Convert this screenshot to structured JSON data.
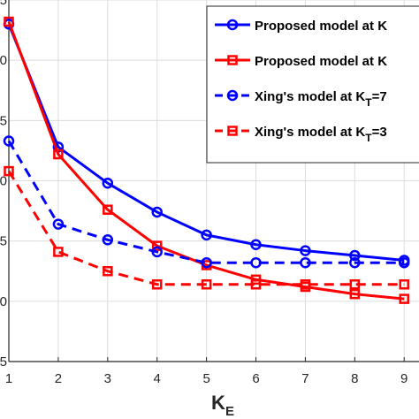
{
  "chart_data": {
    "type": "line",
    "xlabel_main": "K",
    "xlabel_sub": "E",
    "ylabel": "",
    "x": [
      1,
      2,
      3,
      4,
      5,
      6,
      7,
      8,
      9
    ],
    "xticks": [
      "1",
      "2",
      "3",
      "4",
      "5",
      "6",
      "7",
      "8",
      "9"
    ],
    "yticks": [
      "5",
      "0",
      "5",
      "0",
      "5",
      "0",
      "5"
    ],
    "xlim": [
      1,
      9.3
    ],
    "ylim": [
      1.5,
      4.5
    ],
    "grid": true,
    "legend_position": "top-right",
    "series": [
      {
        "name": "Proposed model at K",
        "color": "#0000ff",
        "dash": "solid",
        "marker": "circle",
        "values": [
          4.3,
          3.28,
          2.98,
          2.74,
          2.55,
          2.47,
          2.42,
          2.38,
          2.34
        ]
      },
      {
        "name": "Proposed model at K",
        "color": "#ff0000",
        "dash": "solid",
        "marker": "square",
        "values": [
          4.32,
          3.22,
          2.76,
          2.46,
          2.3,
          2.18,
          2.12,
          2.06,
          2.02
        ]
      },
      {
        "name": "Xing's model at K",
        "name_sub": "T",
        "name_tail": "=7",
        "color": "#0000ff",
        "dash": "dashed",
        "marker": "circle",
        "values": [
          3.33,
          2.64,
          2.51,
          2.41,
          2.32,
          2.32,
          2.32,
          2.32,
          2.32
        ]
      },
      {
        "name": "Xing's model at K",
        "name_sub": "T",
        "name_tail": "=3",
        "color": "#ff0000",
        "dash": "dashed",
        "marker": "square",
        "values": [
          3.08,
          2.41,
          2.25,
          2.14,
          2.14,
          2.14,
          2.14,
          2.14,
          2.14
        ]
      }
    ]
  }
}
